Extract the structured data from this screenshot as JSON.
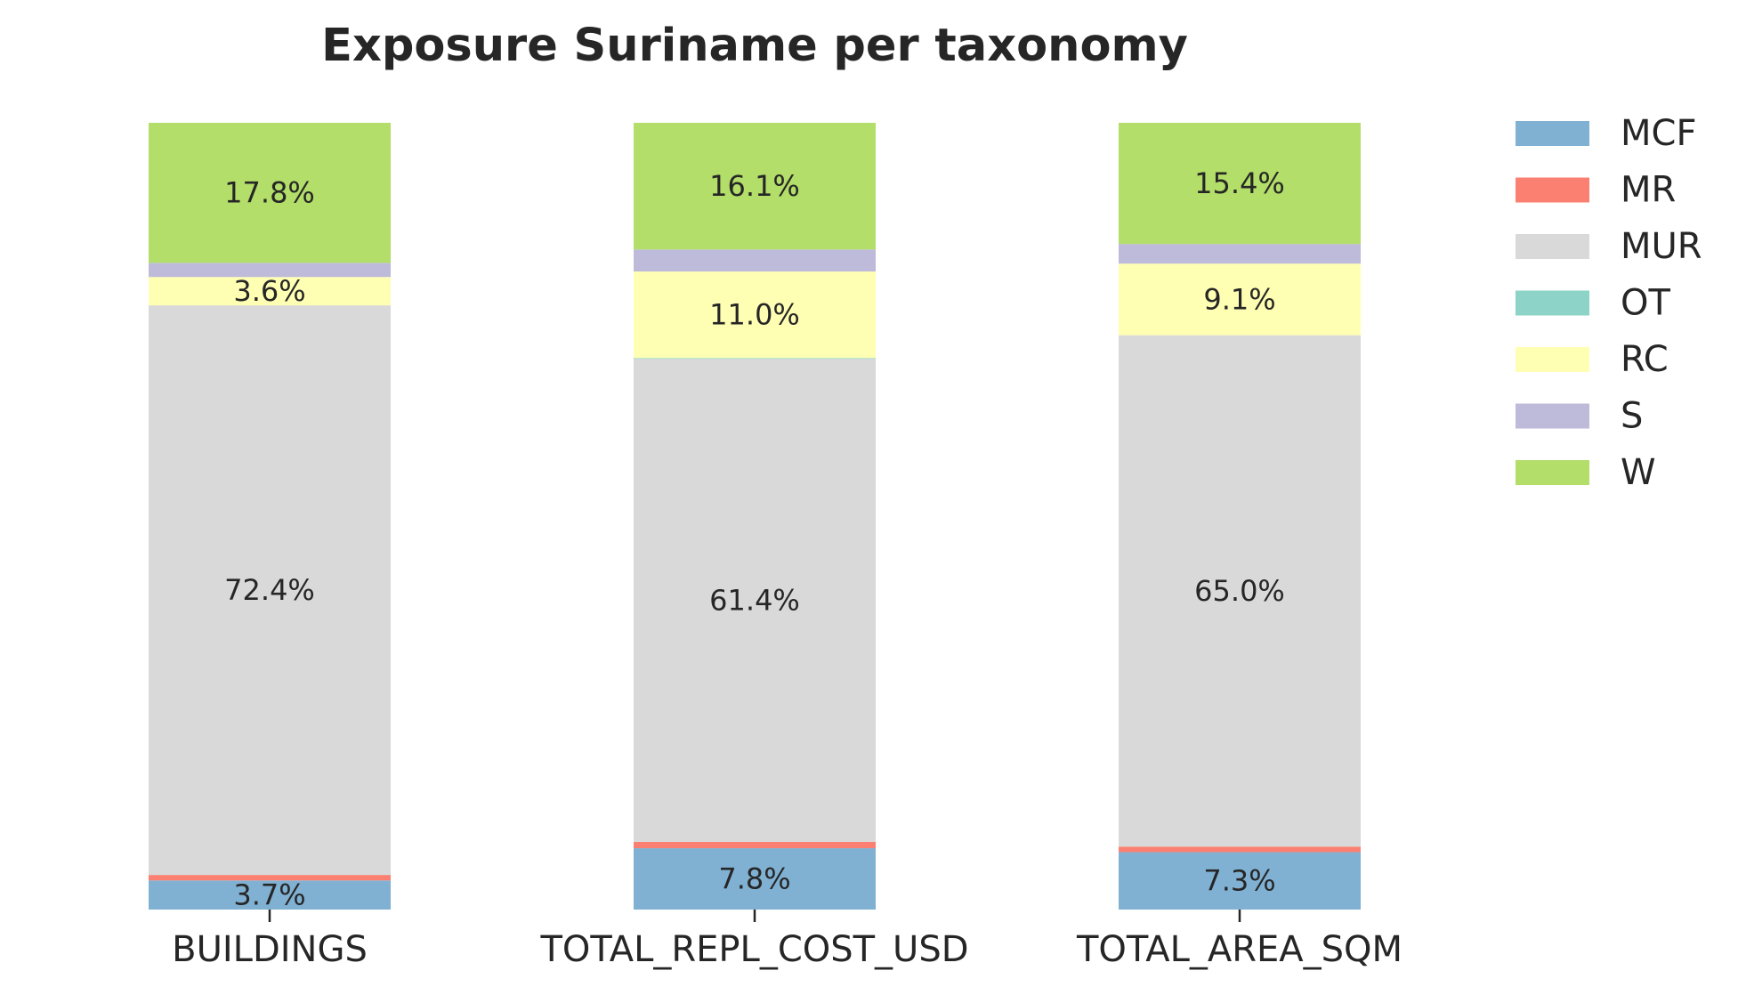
{
  "chart_data": {
    "type": "bar",
    "stacked": true,
    "normalized": "percent",
    "title": "Exposure Suriname per taxonomy",
    "xlabel": "",
    "ylabel": "",
    "ylim": [
      0,
      100
    ],
    "grid": false,
    "legend_position": "right",
    "categories": [
      "BUILDINGS",
      "TOTAL_REPL_COST_USD",
      "TOTAL_AREA_SQM"
    ],
    "series": [
      {
        "name": "MCF",
        "color": "#80b1d3",
        "values": [
          3.7,
          7.8,
          7.3
        ]
      },
      {
        "name": "MR",
        "color": "#fb8072",
        "values": [
          0.7,
          0.8,
          0.7
        ]
      },
      {
        "name": "MUR",
        "color": "#d9d9d9",
        "values": [
          72.4,
          61.4,
          65.0
        ]
      },
      {
        "name": "OT",
        "color": "#8dd3c7",
        "values": [
          0.0,
          0.1,
          0.0
        ]
      },
      {
        "name": "RC",
        "color": "#ffffb3",
        "values": [
          3.6,
          11.0,
          9.1
        ]
      },
      {
        "name": "S",
        "color": "#bebada",
        "values": [
          1.8,
          2.8,
          2.5
        ]
      },
      {
        "name": "W",
        "color": "#b3de69",
        "values": [
          17.8,
          16.1,
          15.4
        ]
      }
    ],
    "data_labels": [
      [
        "3.7%",
        "",
        "72.4%",
        "",
        "3.6%",
        "",
        "17.8%"
      ],
      [
        "7.8%",
        "",
        "61.4%",
        "",
        "11.0%",
        "",
        "16.1%"
      ],
      [
        "7.3%",
        "",
        "65.0%",
        "",
        "9.1%",
        "",
        "15.4%"
      ]
    ]
  }
}
